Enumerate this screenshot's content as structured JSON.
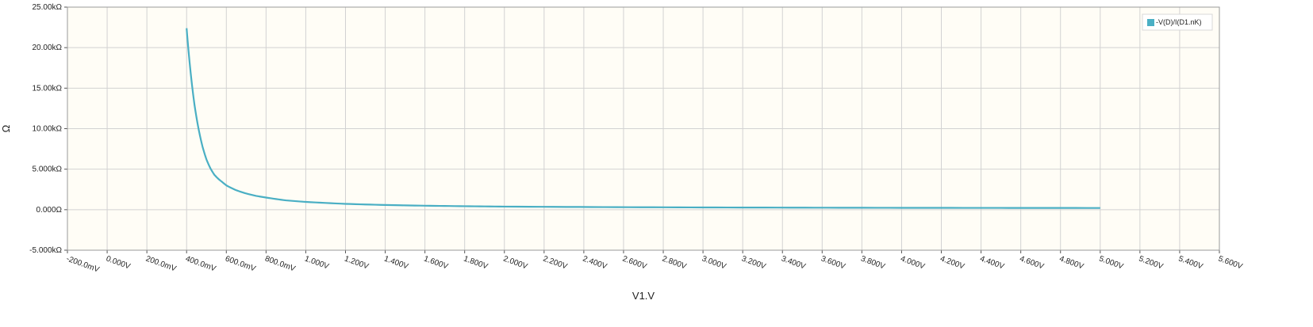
{
  "chart_data": {
    "type": "line",
    "title": "",
    "xlabel": "V1.V",
    "ylabel": "Ω",
    "xlim": [
      -0.2,
      5.6
    ],
    "ylim": [
      -5000,
      25000
    ],
    "x_tick_labels": [
      "-200.0mV",
      "0.000V",
      "200.0mV",
      "400.0mV",
      "600.0mV",
      "800.0mV",
      "1.000V",
      "1.200V",
      "1.400V",
      "1.600V",
      "1.800V",
      "2.000V",
      "2.200V",
      "2.400V",
      "2.600V",
      "2.800V",
      "3.000V",
      "3.200V",
      "3.400V",
      "3.600V",
      "3.800V",
      "4.000V",
      "4.200V",
      "4.400V",
      "4.600V",
      "4.800V",
      "5.000V",
      "5.200V",
      "5.400V",
      "5.600V"
    ],
    "y_ticks": [
      25000,
      20000,
      15000,
      10000,
      5000,
      0,
      -5000
    ],
    "y_tick_labels": [
      "25.00kΩ",
      "20.00kΩ",
      "15.00kΩ",
      "10.00kΩ",
      "5.000kΩ",
      "0.000Ω",
      "-5.000kΩ"
    ],
    "grid": true,
    "legend_position": "top-right",
    "colors": {
      "background": "#fffdf6",
      "grid": "#d2d2d2",
      "frame": "#9a9a9a",
      "series": "#4aafc4"
    },
    "series": [
      {
        "name": "-V(D)/I(D1.nK)",
        "x": [
          0.4,
          0.42,
          0.44,
          0.46,
          0.48,
          0.5,
          0.52,
          0.54,
          0.56,
          0.58,
          0.6,
          0.65,
          0.7,
          0.75,
          0.8,
          0.9,
          1.0,
          1.2,
          1.4,
          1.6,
          1.8,
          2.0,
          2.5,
          3.0,
          3.5,
          4.0,
          4.5,
          5.0
        ],
        "y": [
          22400,
          17000,
          12900,
          10000,
          7800,
          6200,
          5100,
          4300,
          3800,
          3400,
          3000,
          2400,
          2000,
          1700,
          1500,
          1150,
          960,
          720,
          580,
          490,
          430,
          380,
          320,
          280,
          250,
          230,
          220,
          210
        ]
      }
    ]
  }
}
